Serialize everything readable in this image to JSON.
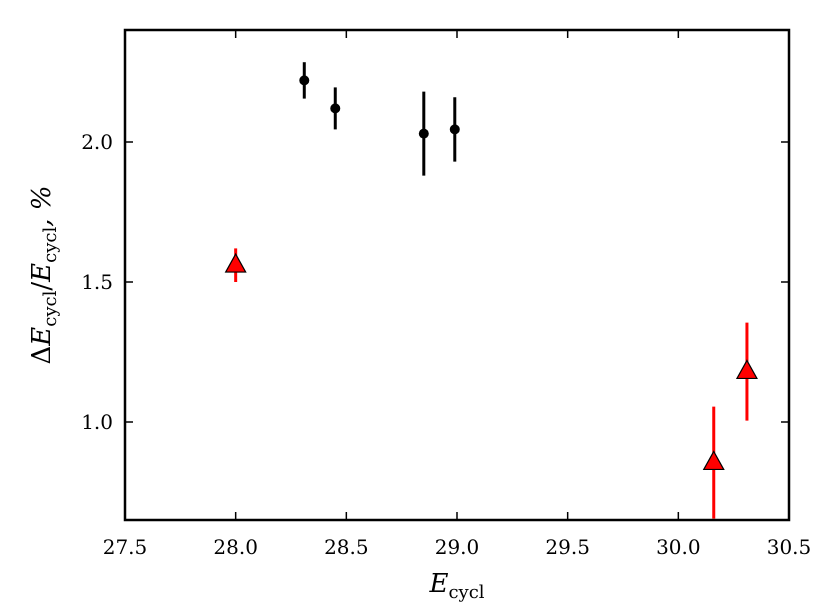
{
  "chart_data": {
    "type": "scatter",
    "xlabel": {
      "base": "E",
      "sub": "cycl"
    },
    "ylabel": {
      "parts": [
        {
          "text": "Δ",
          "style": "upright"
        },
        {
          "text": "E",
          "style": "italic"
        },
        {
          "text": "cycl",
          "style": "sub"
        },
        {
          "text": "/",
          "style": "upright"
        },
        {
          "text": "E",
          "style": "italic"
        },
        {
          "text": "cycl",
          "style": "sub"
        },
        {
          "text": ", %",
          "style": "italic"
        }
      ]
    },
    "xlim": [
      27.5,
      30.5
    ],
    "ylim": [
      0.65,
      2.4
    ],
    "xticks": [
      27.5,
      28.0,
      28.5,
      29.0,
      29.5,
      30.0,
      30.5
    ],
    "xtick_labels": [
      "27.5",
      "28.0",
      "28.5",
      "29.0",
      "29.5",
      "30.0",
      "30.5"
    ],
    "yticks": [
      1.0,
      1.5,
      2.0
    ],
    "ytick_labels": [
      "1.0",
      "1.5",
      "2.0"
    ],
    "grid": false,
    "legend": "none",
    "series": [
      {
        "marker": "circle",
        "color": "#000000",
        "points": [
          {
            "x": 28.31,
            "y": 2.22,
            "yerr": 0.065
          },
          {
            "x": 28.45,
            "y": 2.12,
            "yerr": 0.075
          },
          {
            "x": 28.85,
            "y": 2.03,
            "yerr": 0.15
          },
          {
            "x": 28.99,
            "y": 2.045,
            "yerr": 0.115
          }
        ]
      },
      {
        "marker": "triangle",
        "color": "#ff0000",
        "edgecolor": "#000000",
        "points": [
          {
            "x": 28.0,
            "y": 1.56,
            "yerr": 0.06
          },
          {
            "x": 30.16,
            "y": 0.855,
            "yerr": 0.2
          },
          {
            "x": 30.31,
            "y": 1.18,
            "yerr": 0.175
          }
        ]
      }
    ]
  }
}
